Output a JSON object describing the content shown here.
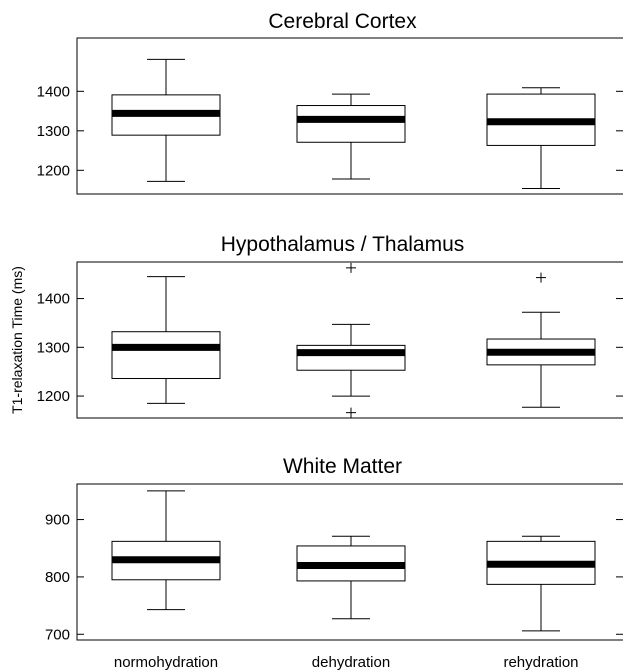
{
  "chart_data": {
    "type": "box",
    "ylabel": "T1-relaxation Time (ms)",
    "categories": [
      "normohydration",
      "dehydration",
      "rehydration"
    ],
    "panels": [
      {
        "title": "Cerebral Cortex",
        "ylim": [
          1140,
          1535
        ],
        "yticks": [
          1200,
          1300,
          1400
        ],
        "boxes": [
          {
            "whisker_low": 1172,
            "q1": 1289,
            "median": 1344,
            "q3": 1391,
            "whisker_high": 1481,
            "outliers": []
          },
          {
            "whisker_low": 1178,
            "q1": 1271,
            "median": 1329,
            "q3": 1364,
            "whisker_high": 1393,
            "outliers": []
          },
          {
            "whisker_low": 1154,
            "q1": 1263,
            "median": 1323,
            "q3": 1393,
            "whisker_high": 1409,
            "outliers": []
          }
        ]
      },
      {
        "title": "Hypothalamus / Thalamus",
        "ylim": [
          1155,
          1475
        ],
        "yticks": [
          1200,
          1300,
          1400
        ],
        "boxes": [
          {
            "whisker_low": 1185,
            "q1": 1236,
            "median": 1300,
            "q3": 1332,
            "whisker_high": 1445,
            "outliers": []
          },
          {
            "whisker_low": 1200,
            "q1": 1253,
            "median": 1289,
            "q3": 1304,
            "whisker_high": 1347,
            "outliers": [
              1463,
              1166
            ]
          },
          {
            "whisker_low": 1177,
            "q1": 1264,
            "median": 1290,
            "q3": 1317,
            "whisker_high": 1372,
            "outliers": [
              1443
            ]
          }
        ]
      },
      {
        "title": "White Matter",
        "ylim": [
          690,
          962
        ],
        "yticks": [
          700,
          800,
          900
        ],
        "boxes": [
          {
            "whisker_low": 743,
            "q1": 795,
            "median": 830,
            "q3": 862,
            "whisker_high": 950,
            "outliers": []
          },
          {
            "whisker_low": 727,
            "q1": 793,
            "median": 820,
            "q3": 854,
            "whisker_high": 871,
            "outliers": []
          },
          {
            "whisker_low": 706,
            "q1": 787,
            "median": 822,
            "q3": 862,
            "whisker_high": 871,
            "outliers": []
          }
        ]
      }
    ]
  }
}
